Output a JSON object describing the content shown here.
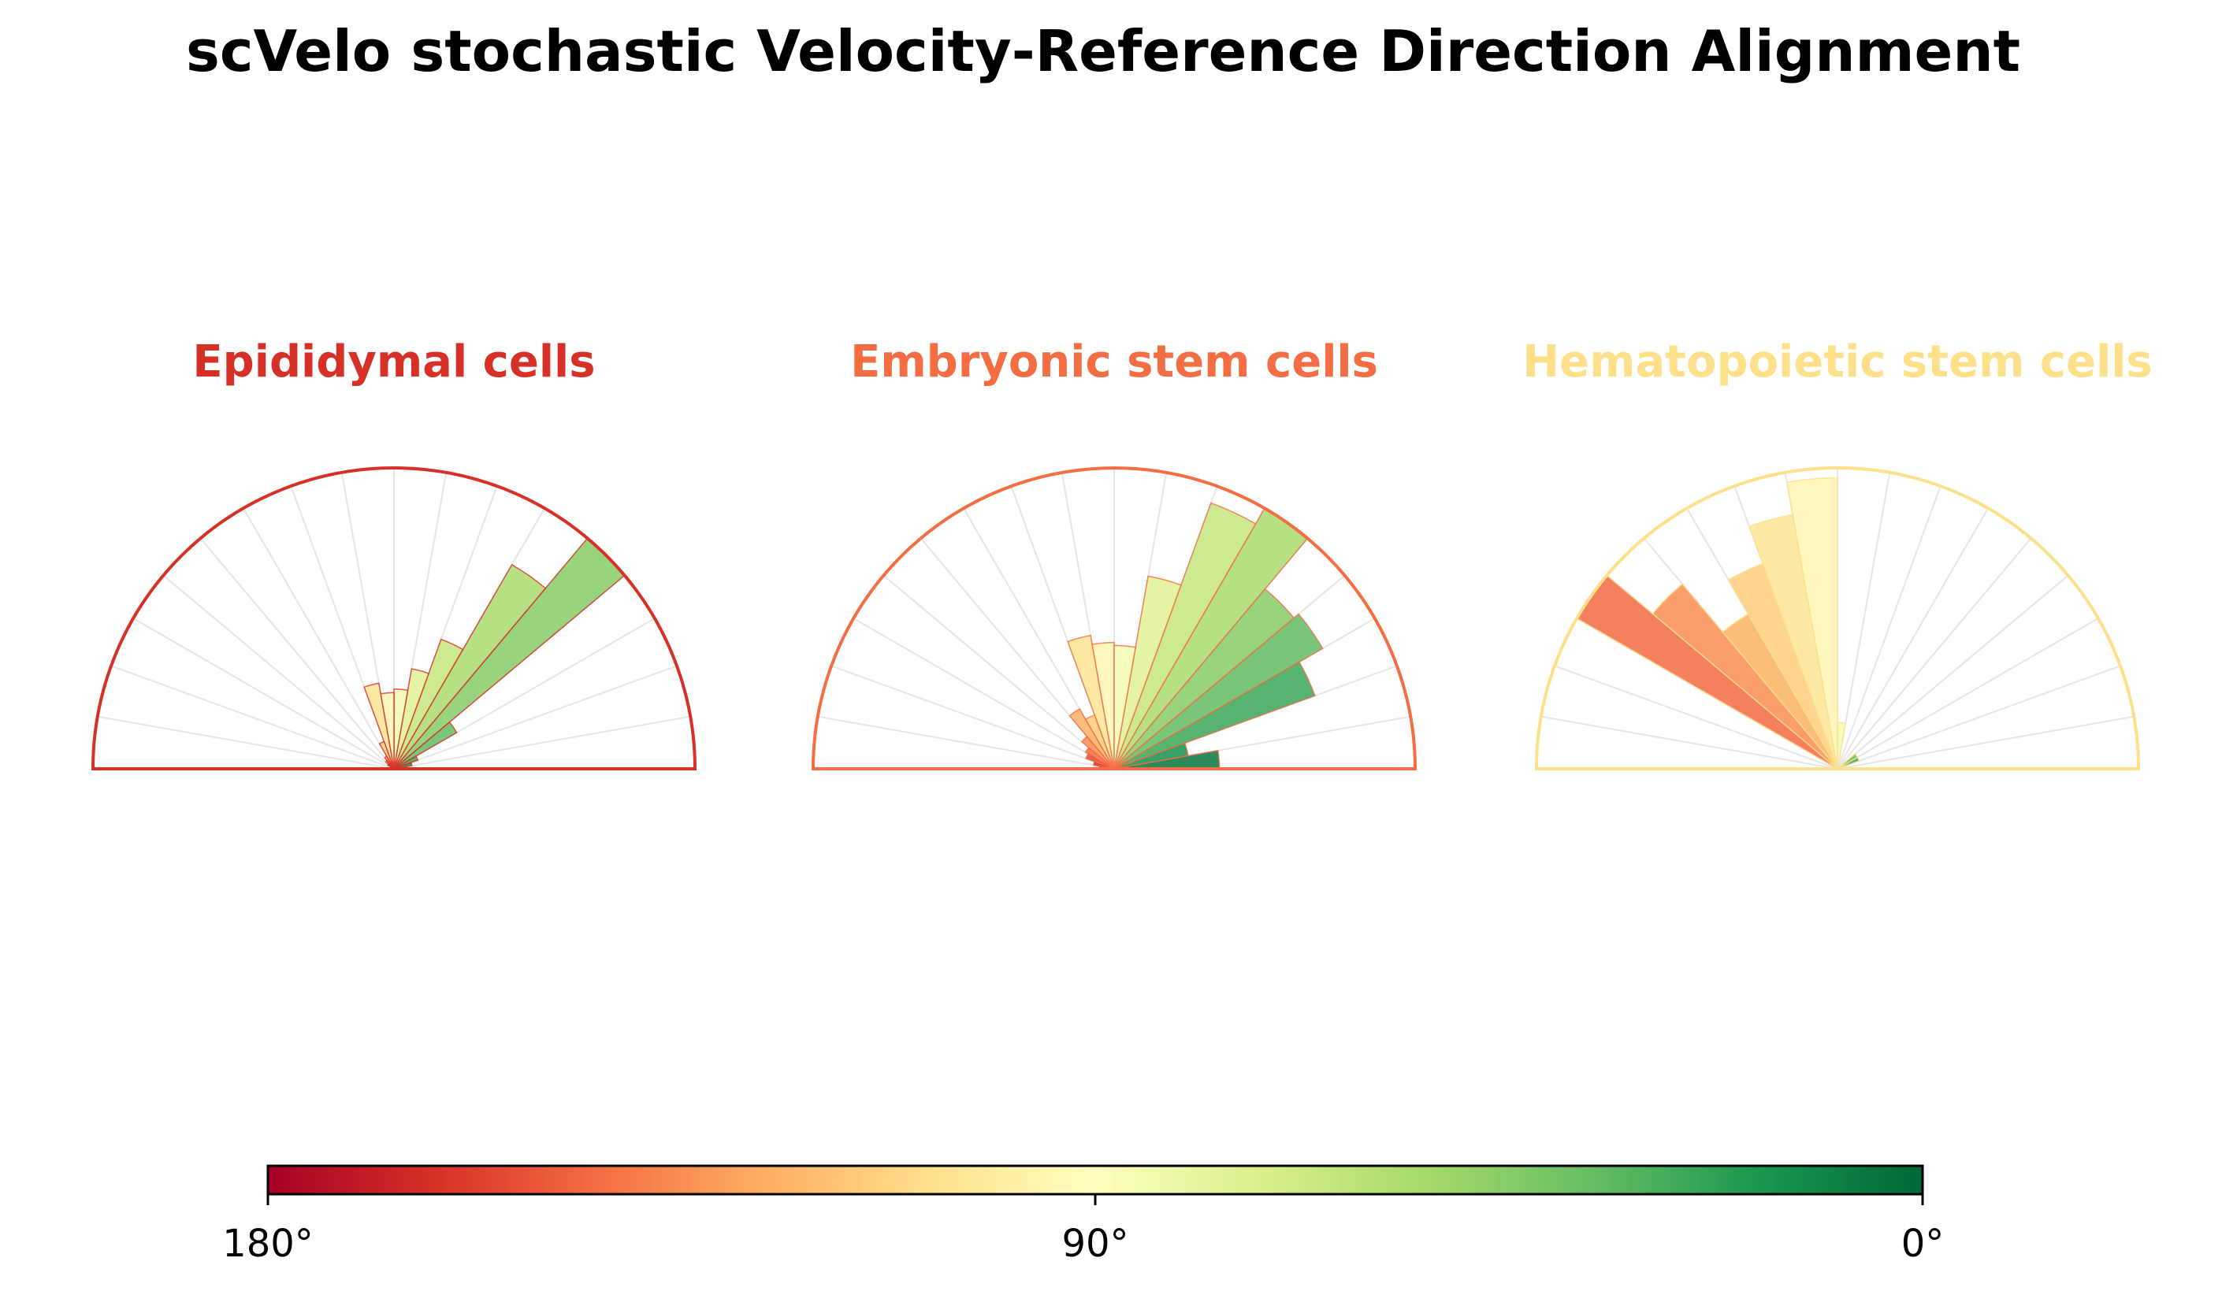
{
  "chart_data": {
    "type": "polar-bar",
    "title": "scVelo stochastic Velocity-Reference Direction Alignment",
    "angle_range_deg": [
      0,
      180
    ],
    "bin_width_deg": 10,
    "colormap": "RdYlGn",
    "colorbar": {
      "ticks": [
        "180°",
        "90°",
        "0°"
      ],
      "stops": [
        "#a50026",
        "#d73027",
        "#f46d43",
        "#fdae61",
        "#fee08b",
        "#ffffbf",
        "#d9ef8b",
        "#a6d96a",
        "#66bd63",
        "#1a9850",
        "#006837"
      ]
    },
    "panels": [
      {
        "label": "Epididymal cells",
        "color": "#d73027",
        "bin_centers_deg": [
          5,
          15,
          25,
          35,
          45,
          55,
          65,
          75,
          85,
          95,
          105,
          115,
          125,
          135,
          145,
          155,
          165,
          175
        ],
        "values": [
          0.01,
          0.05,
          0.07,
          0.2,
          0.83,
          0.65,
          0.38,
          0.28,
          0.22,
          0.21,
          0.24,
          0.08,
          0.04,
          0.03,
          0.02,
          0.01,
          0.01,
          0.01
        ]
      },
      {
        "label": "Embryonic stem cells",
        "color": "#f46d43",
        "bin_centers_deg": [
          5,
          15,
          25,
          35,
          45,
          55,
          65,
          75,
          85,
          95,
          105,
          115,
          125,
          135,
          145,
          155,
          165,
          175
        ],
        "values": [
          0.35,
          0.25,
          0.71,
          0.8,
          0.78,
          1.0,
          0.94,
          0.65,
          0.41,
          0.42,
          0.45,
          0.19,
          0.23,
          0.14,
          0.11,
          0.1,
          0.07,
          0.05
        ]
      },
      {
        "label": "Hematopoietic stem cells",
        "color": "#fee08b",
        "bin_centers_deg": [
          5,
          15,
          25,
          35,
          45,
          55,
          65,
          75,
          85,
          95,
          105,
          115,
          125,
          135,
          145,
          155,
          165,
          175
        ],
        "values": [
          0.0,
          0.0,
          0.07,
          0.07,
          0.0,
          0.0,
          0.0,
          0.0,
          0.14,
          0.88,
          0.78,
          0.66,
          0.54,
          0.73,
          0.91,
          0.0,
          0.0,
          0.0
        ]
      }
    ]
  }
}
